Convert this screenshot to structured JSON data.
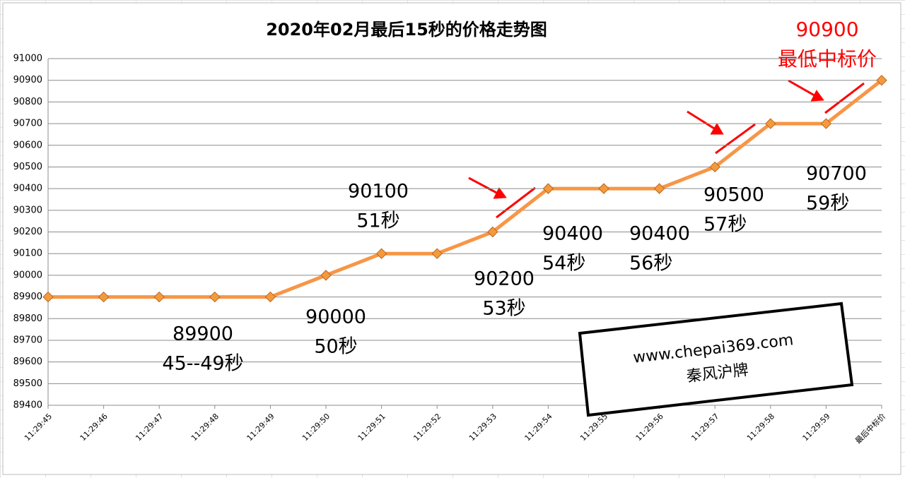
{
  "chart_data": {
    "type": "line",
    "title": "2020年02月最后15秒的价格走势图",
    "categories": [
      "11:29:45",
      "11:29:46",
      "11:29:47",
      "11:29:48",
      "11:29:49",
      "11:29:50",
      "11:29:51",
      "11:29:52",
      "11:29:53",
      "11:29:54",
      "11:29:55",
      "11:29:56",
      "11:29:57",
      "11:29:58",
      "11:29:59",
      "最后中标价"
    ],
    "values": [
      89900,
      89900,
      89900,
      89900,
      89900,
      90000,
      90100,
      90100,
      90200,
      90400,
      90400,
      90400,
      90500,
      90700,
      90700,
      90900
    ],
    "color": "#f79646",
    "marker_color": "#f59a3c",
    "ylim": [
      89400,
      91000
    ],
    "yticks": [
      89400,
      89500,
      89600,
      89700,
      89800,
      89900,
      90000,
      90100,
      90200,
      90300,
      90400,
      90500,
      90600,
      90700,
      90800,
      90900,
      91000
    ],
    "grid": true,
    "annotations": [
      {
        "lines": [
          "89900",
          "45--49秒"
        ]
      },
      {
        "lines": [
          "90000",
          "50秒"
        ]
      },
      {
        "lines": [
          "90100",
          "51秒"
        ]
      },
      {
        "lines": [
          "90200",
          "53秒"
        ]
      },
      {
        "lines": [
          "90400",
          "54秒"
        ]
      },
      {
        "lines": [
          "90400",
          "56秒"
        ]
      },
      {
        "lines": [
          "90500",
          "57秒"
        ]
      },
      {
        "lines": [
          "90700",
          "59秒"
        ]
      }
    ],
    "highlight": {
      "lines": [
        "90900",
        "最低中标价"
      ],
      "color": "#ff0000"
    }
  },
  "watermark": {
    "lines": [
      "www.chepai369.com",
      "秦风沪牌"
    ]
  }
}
